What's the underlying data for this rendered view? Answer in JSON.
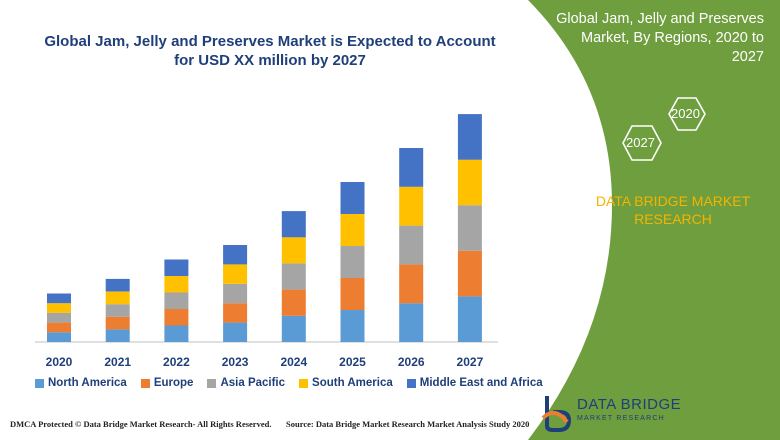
{
  "title_lines": [
    "Global Jam, Jelly and Preserves Market is Expected to Account",
    "for USD XX million by 2027"
  ],
  "right_panel": {
    "title_lines": [
      "Global Jam, Jelly and Preserves",
      "Market, By Regions, 2020 to",
      "2027"
    ],
    "hex_labels": [
      "2020",
      "2027"
    ],
    "brand_lines": [
      "DATA BRIDGE MARKET",
      "RESEARCH"
    ]
  },
  "chart_data": {
    "type": "bar",
    "stacked": true,
    "categories": [
      "2020",
      "2021",
      "2022",
      "2023",
      "2024",
      "2025",
      "2026",
      "2027"
    ],
    "series": [
      {
        "name": "North America",
        "color": "#5b9bd5",
        "values": [
          10,
          13,
          17,
          20,
          27,
          33,
          40,
          47
        ]
      },
      {
        "name": "Europe",
        "color": "#ed7d31",
        "values": [
          10,
          13,
          17,
          20,
          27,
          33,
          40,
          47
        ]
      },
      {
        "name": "Asia Pacific",
        "color": "#a5a5a5",
        "values": [
          10,
          13,
          17,
          20,
          27,
          33,
          40,
          47
        ]
      },
      {
        "name": "South America",
        "color": "#ffc000",
        "values": [
          10,
          13,
          17,
          20,
          27,
          33,
          40,
          47
        ]
      },
      {
        "name": "Middle East and Africa",
        "color": "#4472c4",
        "values": [
          10,
          13,
          17,
          20,
          27,
          33,
          40,
          47
        ]
      }
    ],
    "legend_position": "bottom",
    "grid": false
  },
  "footer": {
    "left": "DMCA Protected © Data Bridge Market Research- All Rights Reserved.",
    "right": "Source: Data Bridge Market Research Market Analysis Study 2020"
  },
  "logo": {
    "line1": "DATA BRIDGE",
    "line2": "MARKET RESEARCH"
  },
  "colors": {
    "panel_green": "#6e9e3e",
    "accent_yellow": "#f4b400",
    "title_blue": "#1f3f7a"
  }
}
